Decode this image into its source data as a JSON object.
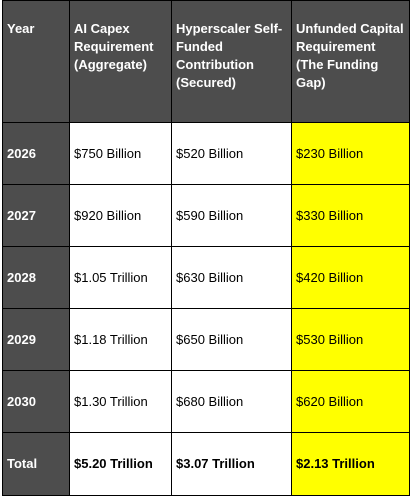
{
  "headers": {
    "year": "Year",
    "capex": "AI Capex Requirement (Aggregate)",
    "self_funded": "Hyperscaler Self-Funded Contribution (Secured)",
    "unfunded": "Unfunded Capital Requirement (The Funding Gap)"
  },
  "rows": [
    {
      "year": "2026",
      "capex": "$750 Billion",
      "self_funded": "$520 Billion",
      "unfunded": "$230 Billion"
    },
    {
      "year": "2027",
      "capex": "$920 Billion",
      "self_funded": "$590 Billion",
      "unfunded": "$330 Billion"
    },
    {
      "year": "2028",
      "capex": "$1.05 Trillion",
      "self_funded": "$630 Billion",
      "unfunded": "$420 Billion"
    },
    {
      "year": "2029",
      "capex": "$1.18 Trillion",
      "self_funded": "$650 Billion",
      "unfunded": "$530 Billion"
    },
    {
      "year": "2030",
      "capex": "$1.30 Trillion",
      "self_funded": "$680 Billion",
      "unfunded": "$620 Billion"
    }
  ],
  "total": {
    "label": "Total",
    "capex": "$5.20 Trillion",
    "self_funded": "$3.07 Trillion",
    "unfunded": "$2.13 Trillion"
  },
  "colors": {
    "header_bg": "#4d4d4d",
    "header_text": "#ffffff",
    "highlight": "#ffff00",
    "border": "#000000"
  }
}
